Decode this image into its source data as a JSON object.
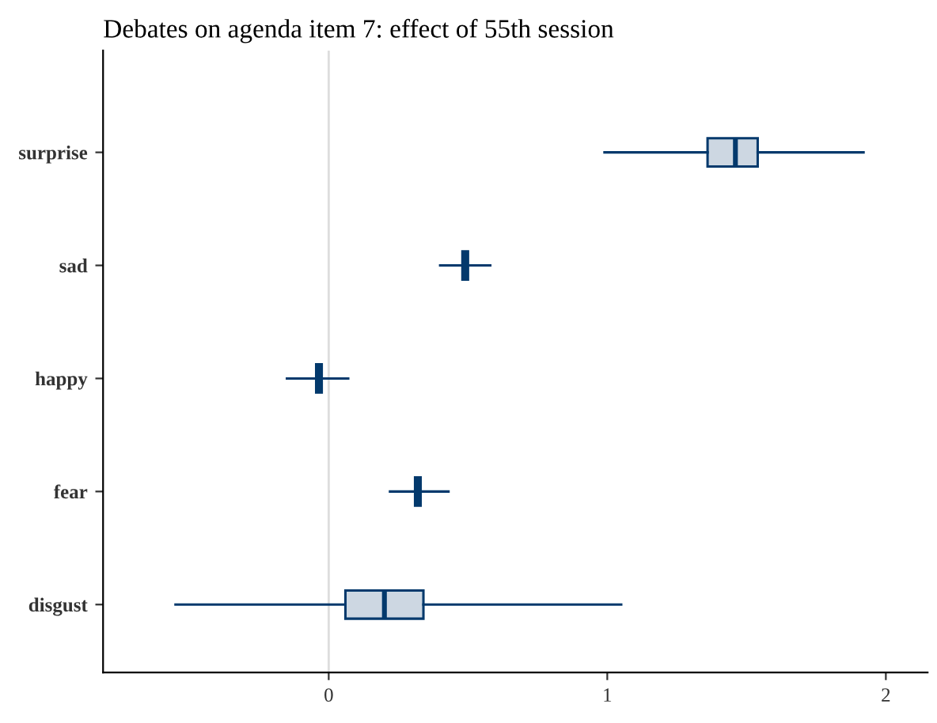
{
  "chart_data": {
    "type": "box",
    "orientation": "horizontal",
    "title": "Debates on agenda item 7: effect of 55th session",
    "categories": [
      "surprise",
      "sad",
      "happy",
      "fear",
      "disgust"
    ],
    "boxes": [
      {
        "low": 0.99,
        "q1": 1.36,
        "median": 1.46,
        "q3": 1.54,
        "high": 1.92
      },
      {
        "low": 0.4,
        "q1": 0.48,
        "median": 0.49,
        "q3": 0.5,
        "high": 0.58
      },
      {
        "low": -0.15,
        "q1": -0.045,
        "median": -0.035,
        "q3": -0.025,
        "high": 0.07
      },
      {
        "low": 0.22,
        "q1": 0.31,
        "median": 0.32,
        "q3": 0.33,
        "high": 0.43
      },
      {
        "low": -0.55,
        "q1": 0.06,
        "median": 0.2,
        "q3": 0.34,
        "high": 1.05
      }
    ],
    "color": "#03396c",
    "xlim": [
      -0.81,
      2.15
    ],
    "xticks": [
      0,
      1,
      2
    ],
    "ref_lines": [
      {
        "axis": "x",
        "value": 0,
        "color": "#dddddd"
      }
    ],
    "grid": false,
    "legend": false
  }
}
